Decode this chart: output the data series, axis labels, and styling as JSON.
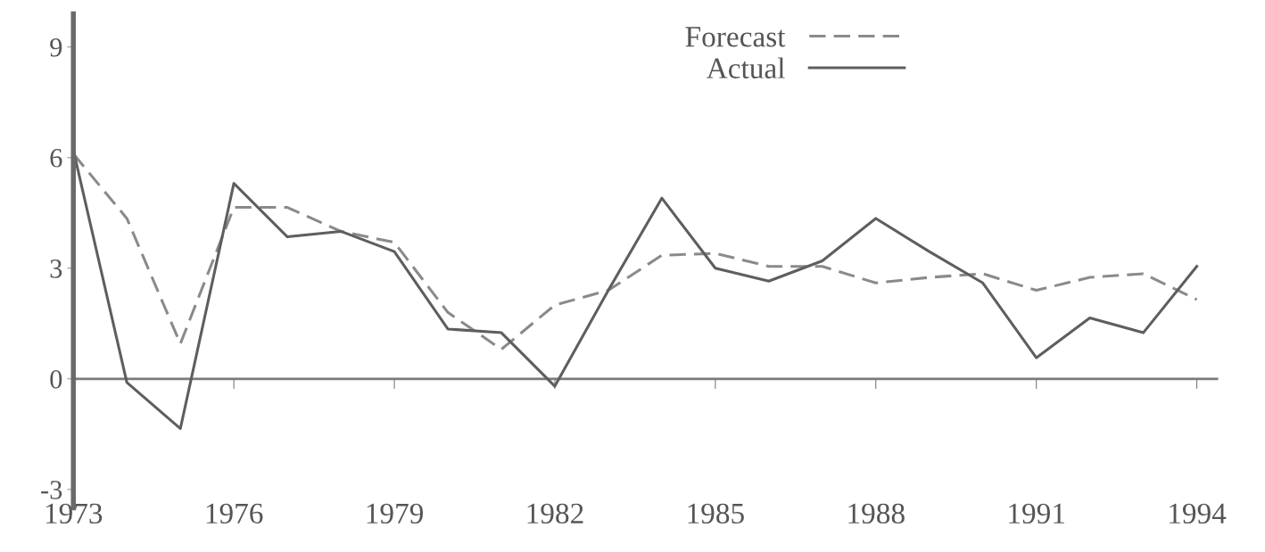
{
  "chart_data": {
    "type": "line",
    "x": [
      1973,
      1974,
      1975,
      1976,
      1977,
      1978,
      1979,
      1980,
      1981,
      1982,
      1983,
      1984,
      1985,
      1986,
      1987,
      1988,
      1989,
      1990,
      1991,
      1992,
      1993,
      1994
    ],
    "series": [
      {
        "name": "Forecast",
        "color": "#8a8a8a",
        "line_style": "dashed",
        "values": [
          6.1,
          4.35,
          0.95,
          4.65,
          4.65,
          4.0,
          3.7,
          1.8,
          0.8,
          2.0,
          2.4,
          3.35,
          3.4,
          3.05,
          3.05,
          2.6,
          2.75,
          2.85,
          2.4,
          2.75,
          2.85,
          2.15
        ]
      },
      {
        "name": "Actual",
        "color": "#5e5e5e",
        "line_style": "solid",
        "values": [
          6.2,
          -0.1,
          -1.35,
          5.3,
          3.85,
          4.0,
          3.45,
          1.35,
          1.25,
          -0.2,
          2.4,
          4.9,
          3.0,
          2.65,
          3.2,
          4.35,
          3.45,
          2.6,
          0.57,
          1.65,
          1.25,
          3.05
        ]
      }
    ],
    "xlim": [
      1973,
      1994.4
    ],
    "ylim": [
      -3.5,
      9.9
    ],
    "xticks": [
      1973,
      1976,
      1979,
      1982,
      1985,
      1988,
      1991,
      1994
    ],
    "yticks": [
      -3,
      0,
      3,
      6,
      9
    ],
    "ref_lines": [
      {
        "axis": "y",
        "value": 0,
        "color": "#7a7a7a",
        "line_style": "solid"
      }
    ],
    "grid": false,
    "legend": "top",
    "marker": "none"
  }
}
